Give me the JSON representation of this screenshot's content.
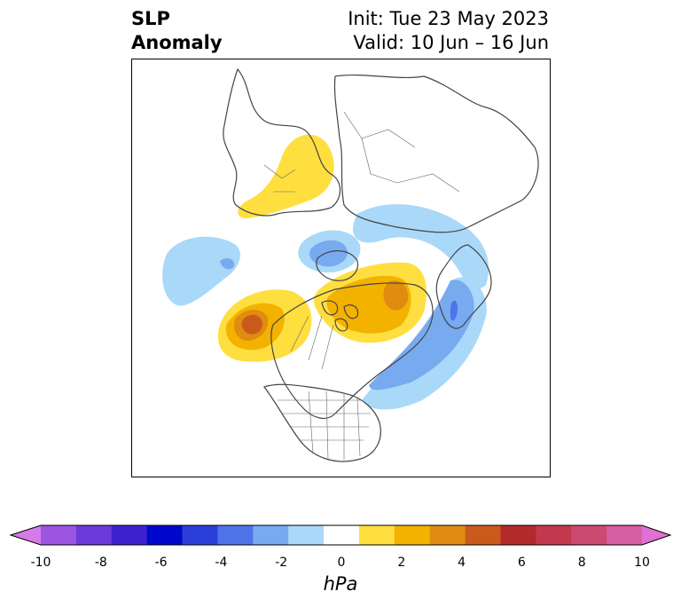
{
  "title": {
    "left_line1": "SLP",
    "left_line2": "Anomaly",
    "right_line1": "Init: Tue 23 May 2023",
    "right_line2": "Valid: 10 Jun – 16 Jun"
  },
  "colorbar": {
    "unit": "hPa",
    "ticks": [
      "-10",
      "-8",
      "-6",
      "-4",
      "-2",
      "0",
      "2",
      "4",
      "6",
      "8",
      "10"
    ],
    "colors": [
      "#d67ae8",
      "#9b55e0",
      "#6b3ad8",
      "#3e22d0",
      "#0008cc",
      "#2b3fd8",
      "#4f73e8",
      "#78aaf0",
      "#aad8f8",
      "#ffffff",
      "#ffdf40",
      "#f3b200",
      "#e08c10",
      "#c95a1c",
      "#b22a2a",
      "#c2384c",
      "#cc4a72",
      "#d85ea4",
      "#e070d4"
    ]
  },
  "map": {
    "projection": "north polar stereographic",
    "features": [
      "coastlines",
      "country borders",
      "US state borders",
      "Canadian province borders"
    ],
    "anomalies": [
      {
        "region": "northern Europe / Scandinavia",
        "sign": "positive"
      },
      {
        "region": "Greenland",
        "sign": "negative"
      },
      {
        "region": "Arctic / Canadian Archipelago",
        "sign": "positive"
      },
      {
        "region": "eastern Siberia / Alaska (north)",
        "sign": "negative"
      },
      {
        "region": "Gulf of Alaska / British Columbia",
        "sign": "positive"
      },
      {
        "region": "North Atlantic off eastern Canada",
        "sign": "negative"
      },
      {
        "region": "North Pacific",
        "sign": "negative"
      }
    ]
  }
}
